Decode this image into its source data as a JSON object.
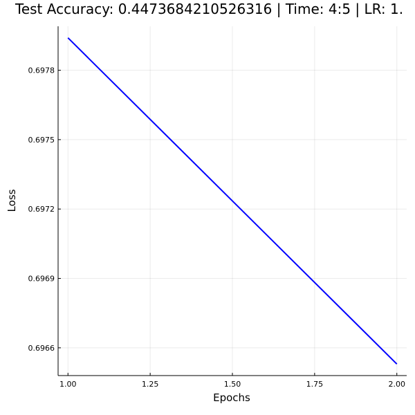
{
  "chart_data": {
    "type": "line",
    "title": "Test Accuracy: 0.4473684210526316 | Time: 4:5 | LR: 1.",
    "xlabel": "Epochs",
    "ylabel": "Loss",
    "xlim": [
      0.97,
      2.03
    ],
    "ylim": [
      0.69648,
      0.69799
    ],
    "x_ticks": [
      1.0,
      1.25,
      1.5,
      1.75,
      2.0
    ],
    "x_tick_labels": [
      "1.00",
      "1.25",
      "1.50",
      "1.75",
      "2.00"
    ],
    "y_ticks": [
      0.6966,
      0.6969,
      0.6972,
      0.6975,
      0.6978
    ],
    "y_tick_labels": [
      "0.6966",
      "0.6969",
      "0.6972",
      "0.6975",
      "0.6978"
    ],
    "grid": true,
    "legend": "none",
    "series": [
      {
        "color": "#0000ff",
        "x": [
          1.0,
          2.0
        ],
        "y": [
          0.69794,
          0.69653
        ]
      }
    ]
  }
}
